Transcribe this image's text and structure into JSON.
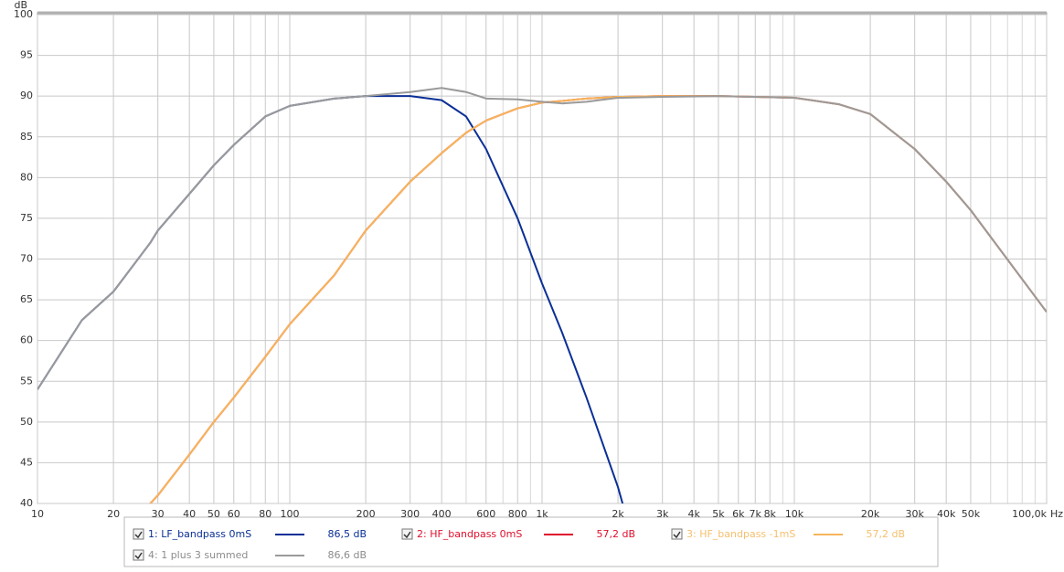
{
  "chart_data": {
    "type": "line",
    "y_label": "dB",
    "x_unit": "Hz",
    "log_x": true,
    "grid": true,
    "xlim": [
      10,
      100000
    ],
    "ylim": [
      40,
      100
    ],
    "yticks": [
      40,
      45,
      50,
      55,
      60,
      65,
      70,
      75,
      80,
      85,
      90,
      95,
      100
    ],
    "xticks": [
      10,
      20,
      30,
      40,
      50,
      60,
      80,
      100,
      200,
      300,
      400,
      600,
      800,
      {
        "value": 1000,
        "label": "1k"
      },
      {
        "value": 2000,
        "label": "2k"
      },
      {
        "value": 3000,
        "label": "3k"
      },
      {
        "value": 4000,
        "label": "4k"
      },
      {
        "value": 5000,
        "label": "5k"
      },
      {
        "value": 6000,
        "label": "6k"
      },
      {
        "value": 7000,
        "label": "7k"
      },
      {
        "value": 8000,
        "label": "8k"
      },
      {
        "value": 10000,
        "label": "10k"
      },
      {
        "value": 20000,
        "label": "20k"
      },
      {
        "value": 30000,
        "label": "30k"
      },
      {
        "value": 40000,
        "label": "40k"
      },
      {
        "value": 50000,
        "label": "50k"
      },
      {
        "value": 100000,
        "label": "100,0k"
      }
    ],
    "minor_xticks": [
      70,
      90,
      500,
      700,
      900,
      9000,
      60000,
      70000,
      80000,
      90000
    ],
    "x": [
      10,
      15,
      20,
      28,
      30,
      40,
      50,
      60,
      80,
      100,
      150,
      200,
      300,
      400,
      500,
      600,
      800,
      1000,
      1200,
      1500,
      2000,
      2085,
      3000,
      5000,
      10000,
      15000,
      20000,
      30000,
      40000,
      50000,
      100000
    ],
    "series": [
      {
        "name": "1: LF_bandpass 0mS",
        "color": "#0a2f96",
        "text_color": "#0a2f96",
        "readout": "86,5 dB",
        "values": [
          54,
          62.5,
          66,
          72,
          73.5,
          78,
          81.5,
          84,
          87.5,
          88.8,
          89.7,
          90,
          90,
          89.5,
          87.5,
          83.5,
          75,
          67,
          61,
          53,
          42,
          40,
          null,
          null,
          null,
          null,
          null,
          null,
          null,
          null,
          null
        ]
      },
      {
        "name": "2: HF_bandpass 0mS",
        "color": "#e0102e",
        "text_color": "#e0102e",
        "readout": "57,2 dB",
        "values": [
          null,
          null,
          null,
          40,
          41,
          46,
          50,
          53,
          58,
          62,
          68,
          73.5,
          79.5,
          83,
          85.5,
          87,
          88.5,
          89.2,
          89.4,
          89.7,
          89.9,
          89.9,
          90,
          90,
          89.8,
          89,
          87.8,
          83.5,
          79.5,
          76,
          63.5
        ]
      },
      {
        "name": "3: HF_bandpass -1mS",
        "color": "#f7b55a",
        "text_color": "#f5c070",
        "readout": "57,2 dB",
        "values": [
          null,
          null,
          null,
          40,
          41,
          46,
          50,
          53,
          58,
          62,
          68,
          73.5,
          79.5,
          83,
          85.5,
          87,
          88.5,
          89.2,
          89.4,
          89.7,
          89.9,
          89.9,
          90,
          90,
          89.8,
          89,
          87.8,
          83.5,
          79.5,
          76,
          63.5
        ]
      },
      {
        "name": "4: 1 plus 3 summed",
        "color": "#9a9a9a",
        "text_color": "#8c8c8c",
        "readout": "86,6 dB",
        "values": [
          54,
          62.5,
          66,
          72,
          73.5,
          78,
          81.5,
          84,
          87.5,
          88.8,
          89.7,
          90,
          90.5,
          91,
          90.5,
          89.7,
          89.6,
          89.3,
          89.1,
          89.3,
          89.8,
          89.8,
          89.9,
          90,
          89.8,
          89,
          87.8,
          83.5,
          79.5,
          76,
          63.5
        ]
      }
    ]
  }
}
